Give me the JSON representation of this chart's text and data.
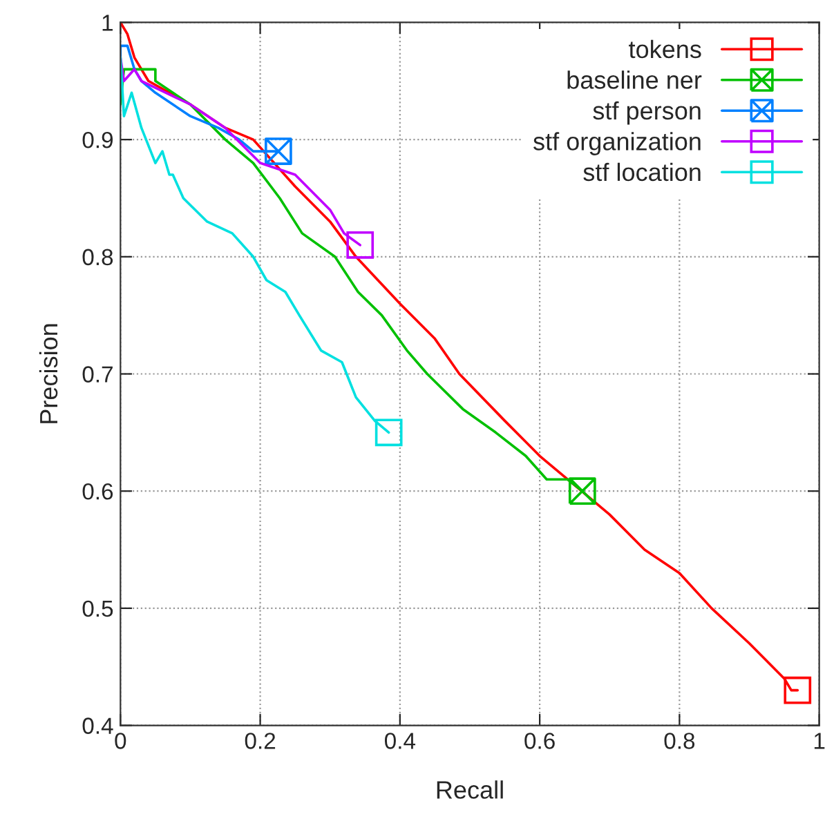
{
  "chart_data": {
    "type": "line",
    "xlabel": "Recall",
    "ylabel": "Precision",
    "xlim": [
      0,
      1
    ],
    "ylim": [
      0.4,
      1
    ],
    "xticks": [
      0,
      0.2,
      0.4,
      0.6,
      0.8,
      1
    ],
    "yticks": [
      0.4,
      0.5,
      0.6,
      0.7,
      0.8,
      0.9,
      1
    ],
    "grid": true,
    "legend": "top right",
    "series": [
      {
        "name": "tokens",
        "color": "#ff0000",
        "x": [
          0,
          0.01,
          0.02,
          0.04,
          0.1,
          0.15,
          0.19,
          0.25,
          0.3,
          0.337,
          0.4,
          0.45,
          0.485,
          0.55,
          0.6,
          0.66,
          0.7,
          0.75,
          0.8,
          0.846,
          0.9,
          0.95,
          0.96,
          0.969
        ],
        "values": [
          1,
          0.99,
          0.97,
          0.95,
          0.93,
          0.91,
          0.9,
          0.86,
          0.83,
          0.8,
          0.76,
          0.73,
          0.7,
          0.66,
          0.63,
          0.6,
          0.58,
          0.55,
          0.53,
          0.5,
          0.47,
          0.44,
          0.43,
          0.43
        ]
      },
      {
        "type": "scatter",
        "color": "#ff0000",
        "marker": "square",
        "x": [
          0.969
        ],
        "values": [
          0.43
        ]
      },
      {
        "name": "baseline ner",
        "color": "#00c000",
        "x": [
          0,
          0.005,
          0.05,
          0.05,
          0.1,
          0.15,
          0.19,
          0.228,
          0.26,
          0.307,
          0.34,
          0.374,
          0.41,
          0.439,
          0.49,
          0.537,
          0.58,
          0.61,
          0.64,
          0.661
        ],
        "values": [
          0.93,
          0.96,
          0.96,
          0.95,
          0.93,
          0.9,
          0.88,
          0.85,
          0.82,
          0.8,
          0.77,
          0.75,
          0.72,
          0.7,
          0.67,
          0.65,
          0.63,
          0.61,
          0.61,
          0.6
        ]
      },
      {
        "type": "scatter",
        "color": "#00c000",
        "marker": "cross",
        "x": [
          0.661
        ],
        "values": [
          0.6
        ]
      },
      {
        "name": "stf person",
        "color": "#0080ff",
        "x": [
          0,
          0,
          0.01,
          0.02,
          0.03,
          0.05,
          0.1,
          0.14,
          0.17,
          0.19,
          0.226
        ],
        "values": [
          0.96,
          0.98,
          0.98,
          0.96,
          0.95,
          0.94,
          0.92,
          0.91,
          0.9,
          0.89,
          0.89
        ]
      },
      {
        "type": "scatter",
        "color": "#0080ff",
        "marker": "cross",
        "x": [
          0.226
        ],
        "values": [
          0.89
        ]
      },
      {
        "name": "stf organization",
        "color": "#c000ff",
        "x": [
          0,
          0.005,
          0.02,
          0.03,
          0.1,
          0.15,
          0.2,
          0.25,
          0.3,
          0.32,
          0.343
        ],
        "values": [
          0.97,
          0.95,
          0.96,
          0.95,
          0.93,
          0.91,
          0.88,
          0.87,
          0.84,
          0.82,
          0.81
        ]
      },
      {
        "type": "scatter",
        "color": "#c000ff",
        "marker": "square",
        "x": [
          0.343
        ],
        "values": [
          0.81
        ]
      },
      {
        "name": "stf location",
        "color": "#00e0e0",
        "x": [
          0,
          0.005,
          0.016,
          0.03,
          0.05,
          0.06,
          0.07,
          0.075,
          0.09,
          0.124,
          0.16,
          0.19,
          0.209,
          0.236,
          0.256,
          0.287,
          0.317,
          0.337,
          0.364,
          0.384
        ],
        "values": [
          0.97,
          0.92,
          0.94,
          0.91,
          0.88,
          0.89,
          0.87,
          0.87,
          0.85,
          0.83,
          0.82,
          0.8,
          0.78,
          0.77,
          0.75,
          0.72,
          0.71,
          0.68,
          0.66,
          0.65
        ]
      },
      {
        "type": "scatter",
        "color": "#00e0e0",
        "marker": "square",
        "x": [
          0.384
        ],
        "values": [
          0.65
        ]
      }
    ]
  }
}
